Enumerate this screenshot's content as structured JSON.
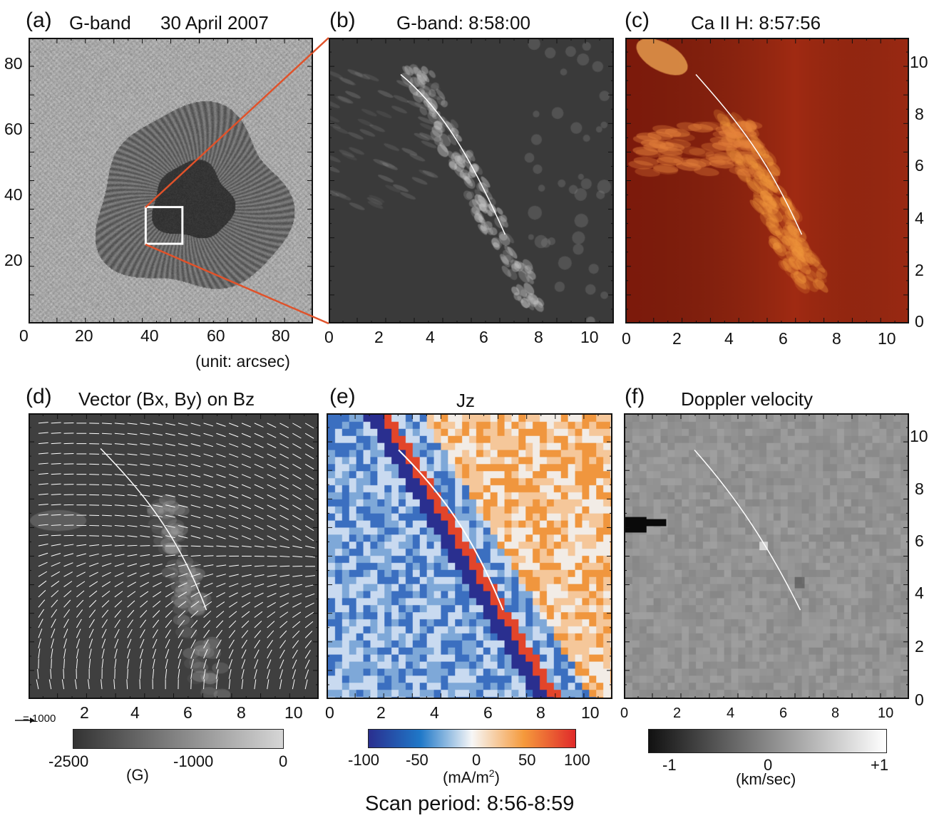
{
  "figure": {
    "date": "30 April 2007",
    "scan_period": "Scan period: 8:56-8:59"
  },
  "panels": {
    "a": {
      "label": "(a)",
      "title": "G-band",
      "unit_note": "(unit: arcsec)",
      "xticks": [
        "0",
        "20",
        "40",
        "60",
        "80"
      ],
      "yticks": [
        "20",
        "40",
        "60",
        "80"
      ]
    },
    "b": {
      "label": "(b)",
      "title": "G-band: 8:58:00",
      "xticks": [
        "0",
        "2",
        "4",
        "6",
        "8",
        "10"
      ]
    },
    "c": {
      "label": "(c)",
      "title": "Ca II H: 8:57:56",
      "xticks": [
        "0",
        "2",
        "4",
        "6",
        "8",
        "10"
      ],
      "yticks": [
        "0",
        "2",
        "4",
        "6",
        "8",
        "10"
      ]
    },
    "d": {
      "label": "(d)",
      "title": "Vector (Bx, By) on Bz",
      "xticks": [
        "2",
        "4",
        "6",
        "8",
        "10"
      ],
      "arrow_scale": "1000"
    },
    "e": {
      "label": "(e)",
      "title": "Jz",
      "xticks": [
        "0",
        "2",
        "4",
        "6",
        "8",
        "10"
      ]
    },
    "f": {
      "label": "(f)",
      "title": "Doppler velocity",
      "xticks": [
        "0",
        "2",
        "4",
        "6",
        "8",
        "10"
      ],
      "yticks": [
        "0",
        "2",
        "4",
        "6",
        "8",
        "10"
      ]
    }
  },
  "colorbars": {
    "bz": {
      "ticks": [
        "-2500",
        "-1000",
        "0"
      ],
      "unit": "(G)",
      "colors": [
        "#333333",
        "#d6d6d6"
      ]
    },
    "jz": {
      "ticks": [
        "-100",
        "-50",
        "0",
        "50",
        "100"
      ],
      "unit_prefix": "(mA/m",
      "unit_sup": "2",
      "unit_suffix": ")",
      "colors": [
        "#2a2f8f",
        "#1f78c8",
        "#f7f7f7",
        "#f59a3c",
        "#e02a2a"
      ]
    },
    "dop": {
      "ticks": [
        "-1",
        "0",
        "+1"
      ],
      "unit": "(km/sec)",
      "colors": [
        "#111111",
        "#ffffff"
      ]
    }
  },
  "colors": {
    "zoom_lines": "#e0522a",
    "fibril_line": "#ffffff"
  }
}
